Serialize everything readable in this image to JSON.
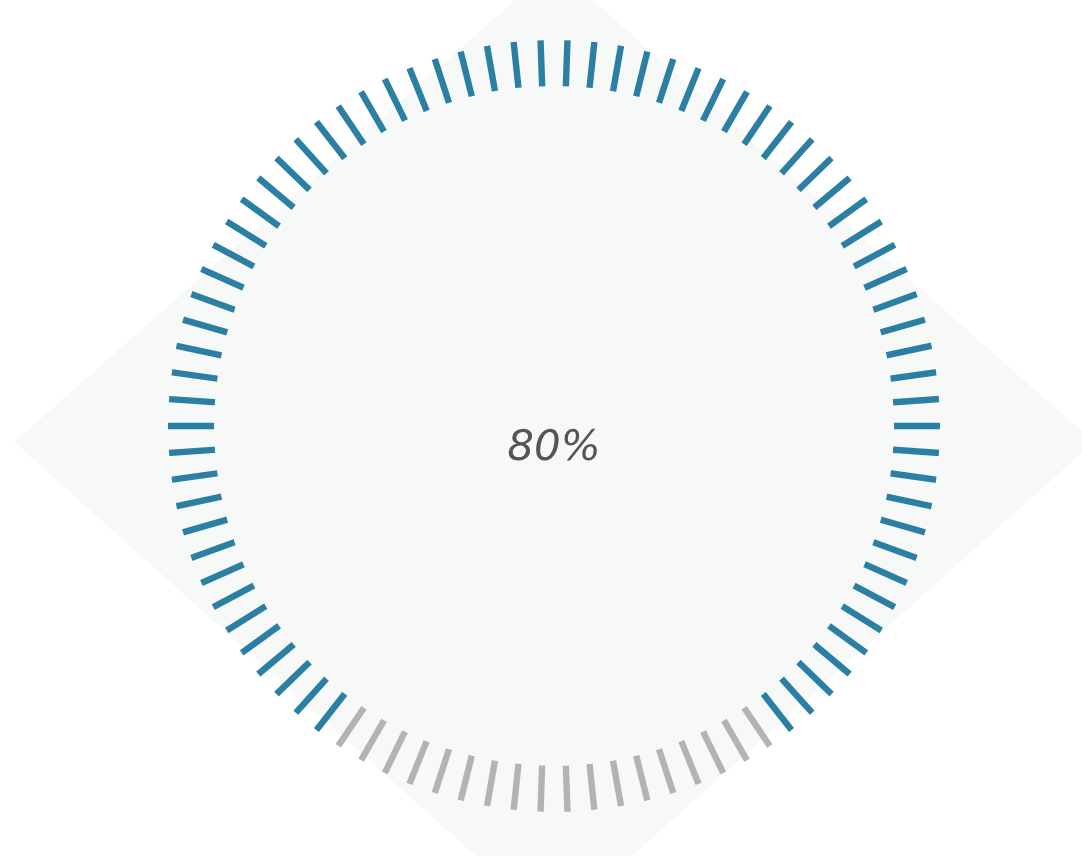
{
  "chart_data": {
    "type": "donut",
    "categories": [
      null,
      null
    ],
    "values": [
      80,
      20
    ],
    "colors": [
      "#2a7fa3",
      "#b3b3b3"
    ],
    "annotations": [
      "80%"
    ]
  }
}
